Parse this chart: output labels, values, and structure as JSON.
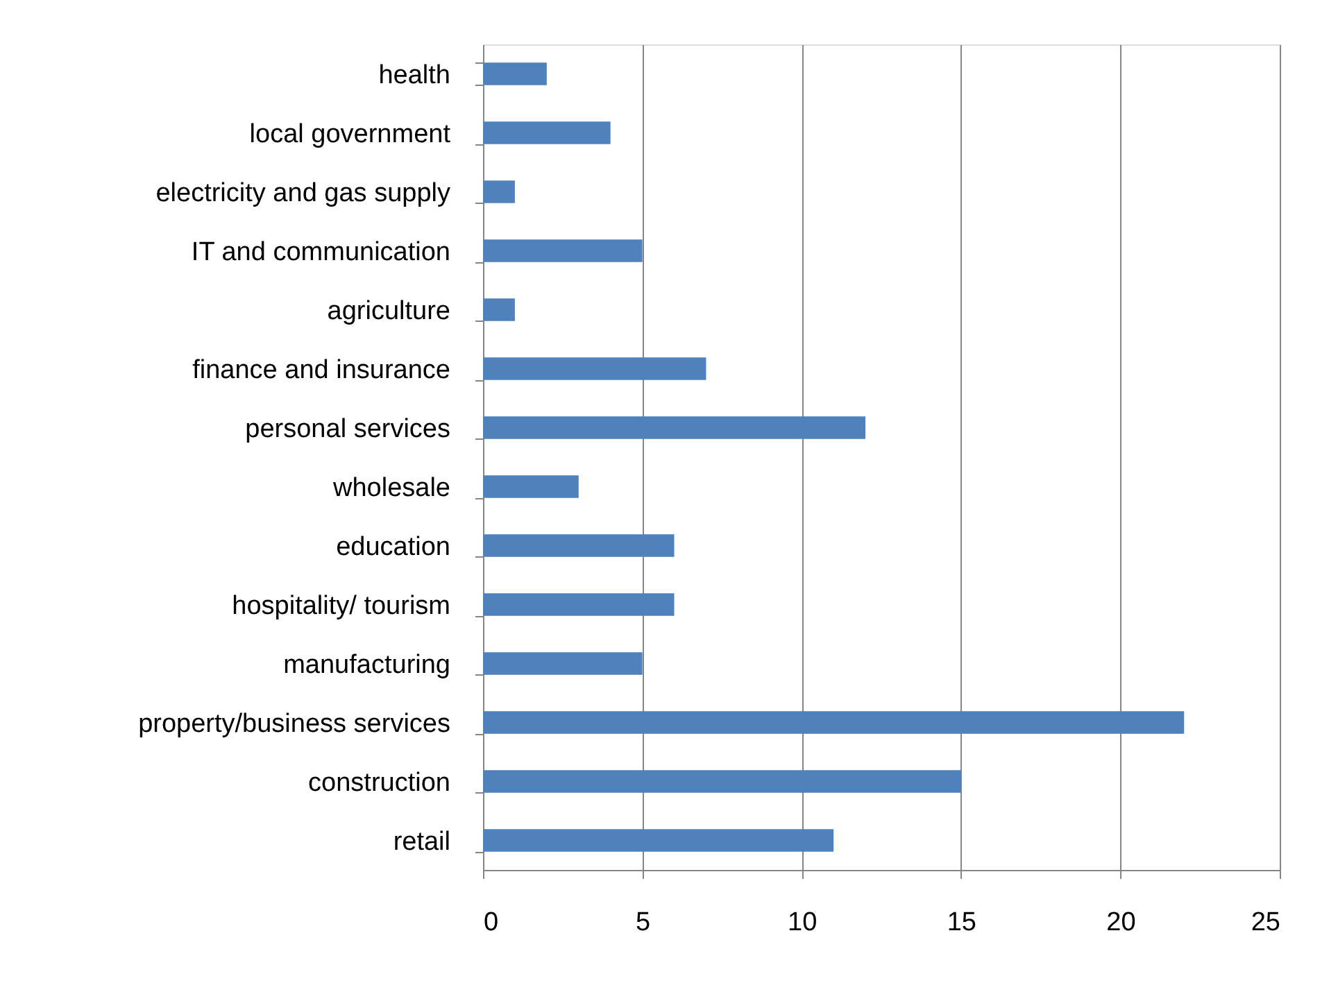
{
  "chart_data": {
    "type": "bar",
    "orientation": "horizontal",
    "categories": [
      "health",
      "local government",
      "electricity and gas supply",
      "IT and communication",
      "agriculture",
      "finance and insurance",
      "personal services",
      "wholesale",
      "education",
      "hospitality/ tourism",
      "manufacturing",
      "property/business services",
      "construction",
      "retail"
    ],
    "values": [
      2,
      4,
      1,
      5,
      1,
      7,
      12,
      3,
      6,
      6,
      5,
      22,
      15,
      11
    ],
    "color": "#4f81bd",
    "xlim": [
      0,
      25
    ],
    "xticks": [
      0,
      5,
      10,
      15,
      20,
      25
    ],
    "grid": "x"
  }
}
